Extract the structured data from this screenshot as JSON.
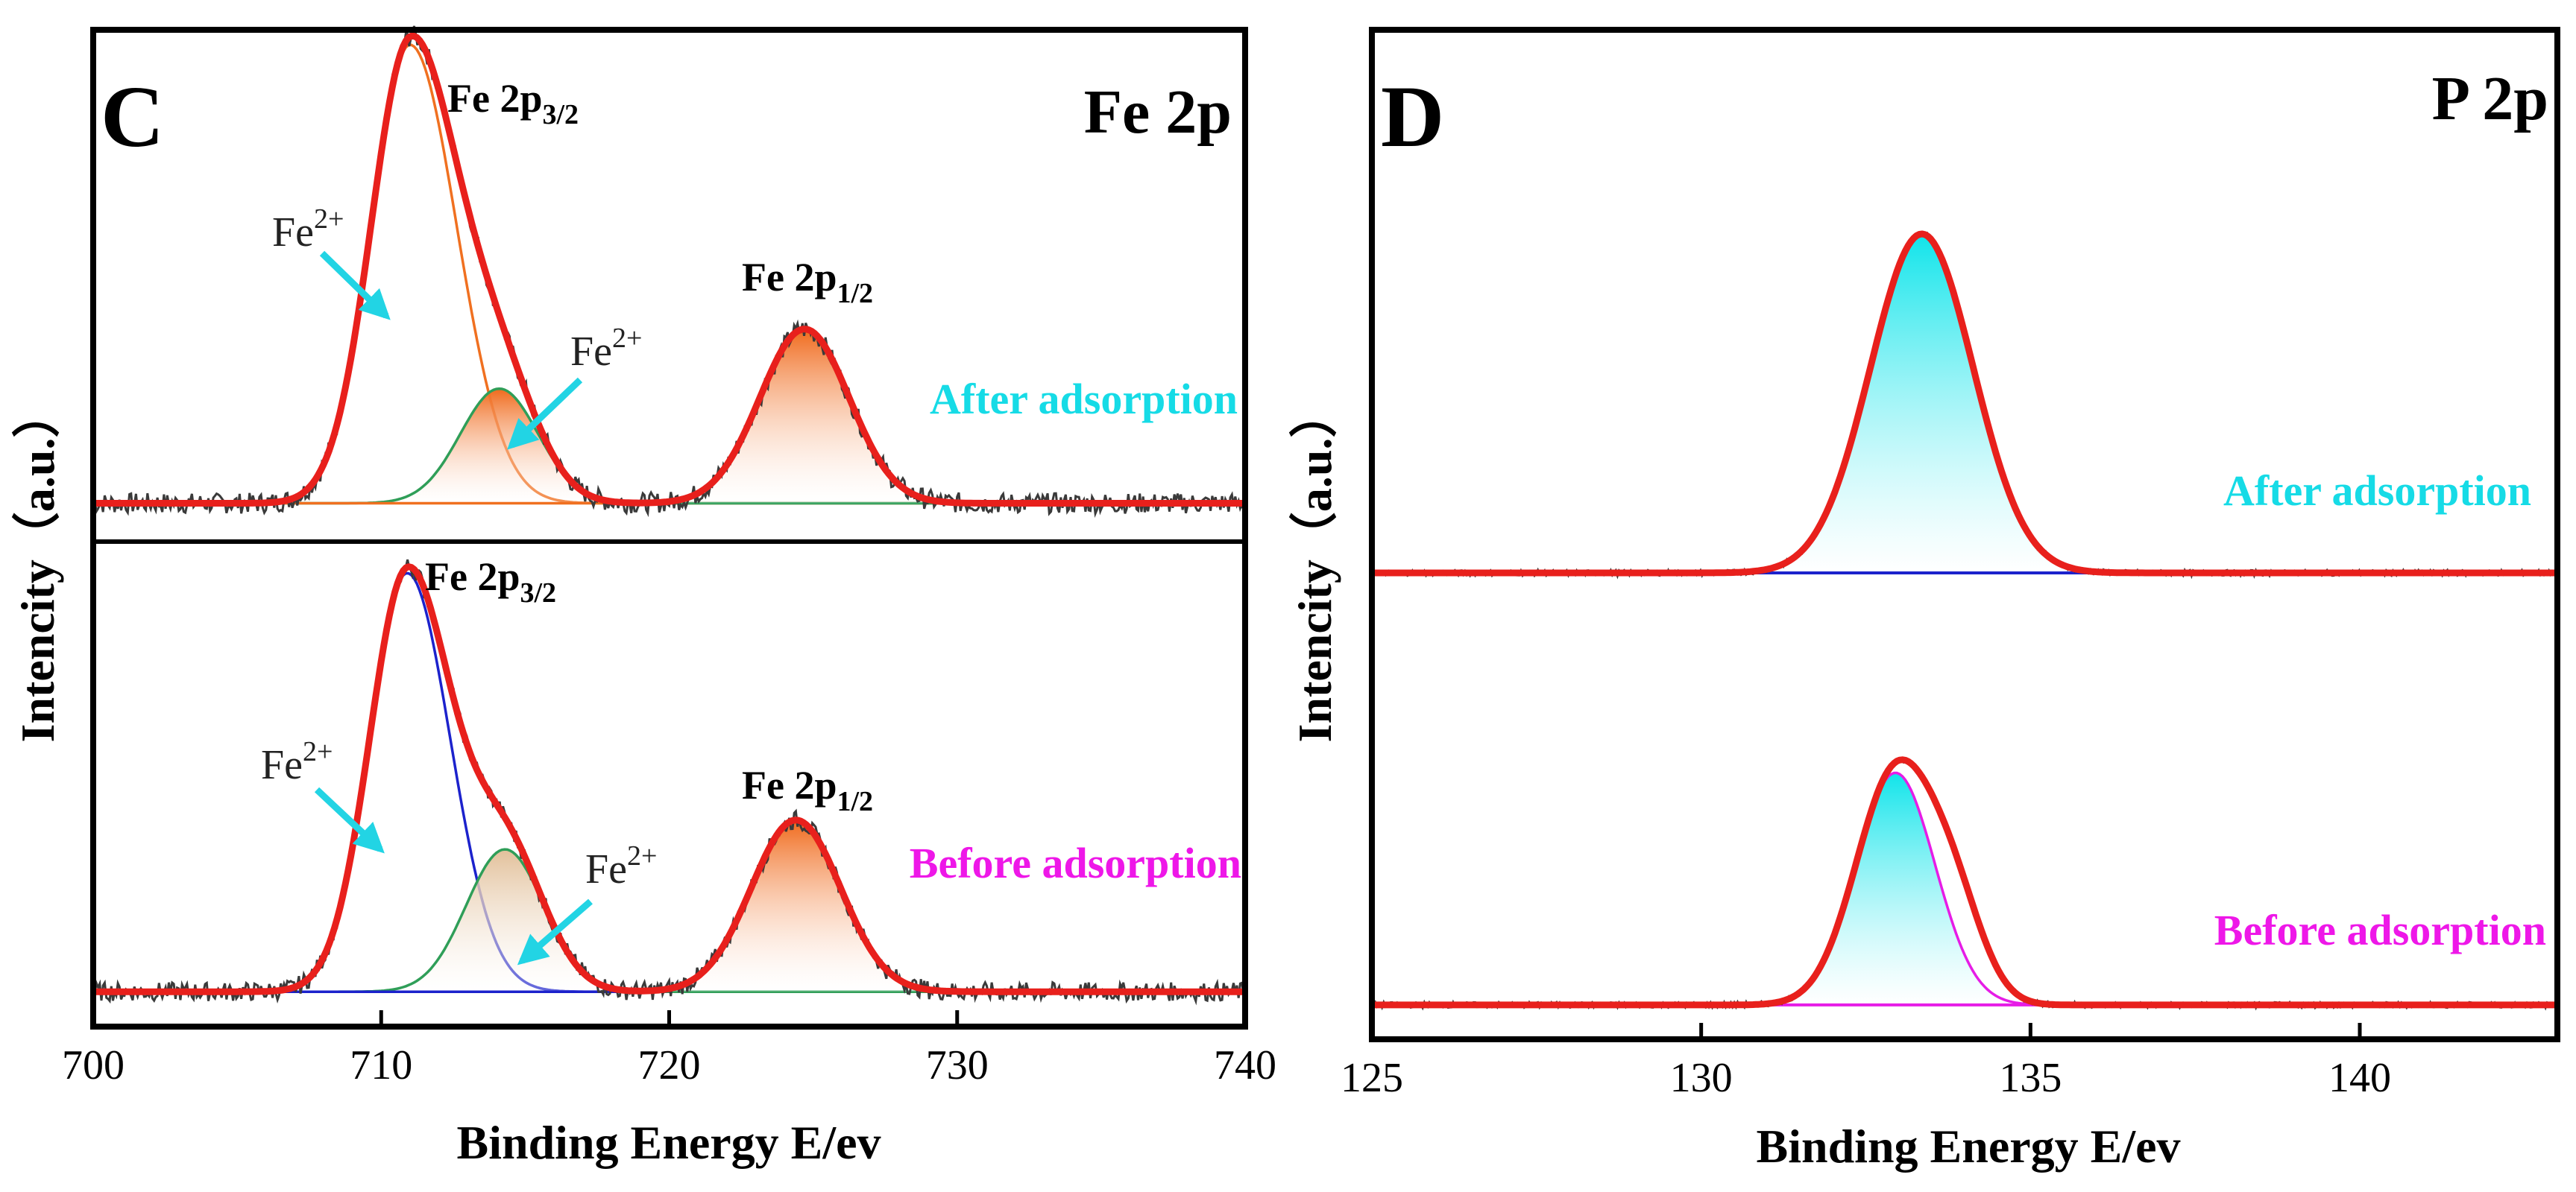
{
  "colors": {
    "fit": "#e8201c",
    "raw": "#3a3a3a",
    "after": "#16dbe6",
    "before": "#ee17e8",
    "arrow": "#22d4e4",
    "fe_orange": "#f07020",
    "fe_tan": "#e8caa8",
    "fe_green": "#2f9e58",
    "fe_blue": "#1c22cc",
    "p_blue": "#1c22cc",
    "p_magenta": "#e61ce6",
    "p_cyan": "#16e6ea"
  },
  "chart_data": [
    {
      "type": "line",
      "panel": "C",
      "title": "Fe 2p",
      "xlabel": "Binding Energy E/ev",
      "ylabel": "Intencity（a.u.）",
      "xlim": [
        700,
        740
      ],
      "xticks": [
        "700",
        "710",
        "720",
        "730",
        "740"
      ],
      "ylim": [
        0,
        1
      ],
      "grid": false,
      "states": [
        {
          "name": "After adsorption",
          "offset": 0.525,
          "scale": 0.46,
          "peaks": [
            {
              "label": "Fe 2p",
              "sub": "3/2",
              "ion": "Fe",
              "ion_sup": "2+",
              "center": 711.0,
              "height": 1.0,
              "sigma": 1.35,
              "fill": "none",
              "stroke": "fe_orange",
              "tail": 1.2
            },
            {
              "label": "",
              "sub": "",
              "ion": "Fe",
              "ion_sup": "2+",
              "center": 714.1,
              "height": 0.25,
              "sigma": 1.35,
              "fill": "fe_orange",
              "stroke": "fe_green",
              "tail": 1.0
            },
            {
              "label": "Fe 2p",
              "sub": "1/2",
              "ion": "",
              "ion_sup": "",
              "center": 724.7,
              "height": 0.38,
              "sigma": 1.55,
              "fill": "fe_orange",
              "stroke": "fe_orange",
              "tail": 1.0
            }
          ]
        },
        {
          "name": "Before adsorption",
          "offset": 0.035,
          "scale": 0.42,
          "peaks": [
            {
              "label": "Fe 2p",
              "sub": "3/2",
              "ion": "Fe",
              "ion_sup": "2+",
              "center": 710.9,
              "height": 1.0,
              "sigma": 1.3,
              "fill": "none",
              "stroke": "fe_blue",
              "tail": 1.15
            },
            {
              "label": "",
              "sub": "",
              "ion": "Fe",
              "ion_sup": "2+",
              "center": 714.3,
              "height": 0.34,
              "sigma": 1.35,
              "fill": "fe_tan",
              "stroke": "fe_green",
              "tail": 1.0
            },
            {
              "label": "Fe 2p",
              "sub": "1/2",
              "ion": "",
              "ion_sup": "",
              "center": 724.4,
              "height": 0.41,
              "sigma": 1.55,
              "fill": "fe_orange",
              "stroke": "fe_blue",
              "tail": 1.0
            }
          ]
        }
      ]
    },
    {
      "type": "line",
      "panel": "D",
      "title": "P 2p",
      "xlabel": "Binding Energy E/ev",
      "ylabel": "Intencity（a.u.）",
      "xlim": [
        125,
        143
      ],
      "xticks": [
        "125",
        "130",
        "135",
        "140"
      ],
      "ylim": [
        0,
        1
      ],
      "grid": false,
      "states": [
        {
          "name": "After adsorption",
          "offset": 0.462,
          "scale": 0.46,
          "baseline_color": "p_blue",
          "peaks": [
            {
              "label": "",
              "sub": "",
              "ion": "",
              "ion_sup": "",
              "center": 133.35,
              "height": 0.73,
              "sigma": 0.78,
              "fill": "p_cyan",
              "stroke": "fit",
              "tail": 1.0
            }
          ]
        },
        {
          "name": "Before adsorption",
          "offset": 0.034,
          "scale": 0.46,
          "baseline_color": "p_magenta",
          "peaks": [
            {
              "label": "",
              "sub": "",
              "ion": "",
              "ion_sup": "",
              "center": 132.95,
              "height": 0.5,
              "sigma": 0.6,
              "fill": "p_cyan",
              "stroke": "p_magenta",
              "tail": 1.0
            },
            {
              "label": "",
              "sub": "",
              "ion": "",
              "ion_sup": "",
              "center": 133.85,
              "height": 0.17,
              "sigma": 0.45,
              "fill": "none",
              "stroke": "none",
              "tail": 1.0
            }
          ]
        }
      ]
    }
  ]
}
